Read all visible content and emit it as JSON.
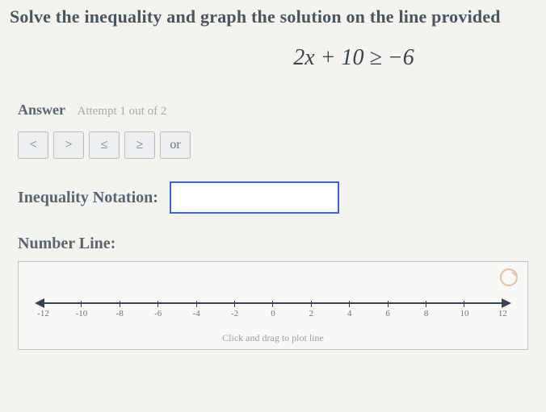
{
  "prompt": "Solve the inequality and graph the solution on the line provided",
  "equation": "2x + 10 ≥ −6",
  "answer": {
    "label": "Answer",
    "attempt": "Attempt 1 out of 2"
  },
  "operators": [
    "<",
    ">",
    "≤",
    "≥",
    "or"
  ],
  "inequality": {
    "label": "Inequality Notation:",
    "placeholder": "",
    "value": ""
  },
  "numberLine": {
    "label": "Number Line:",
    "ticks": [
      "-12",
      "-10",
      "-8",
      "-6",
      "-4",
      "-2",
      "0",
      "2",
      "4",
      "6",
      "8",
      "10",
      "12"
    ],
    "hint": "Click and drag to plot line",
    "colors": {
      "axis": "#3a4450",
      "box_border": "#c0c4c8",
      "box_bg": "#f8f8f6",
      "reset_icon": "#d8a070"
    }
  },
  "styling": {
    "page_bg": "#f5f3f0",
    "text_color": "#5a6570",
    "input_border": "#3a66d6",
    "op_btn_bg": "#eceef0",
    "op_btn_border": "#b8bcc2",
    "muted": "#a5aab0"
  }
}
